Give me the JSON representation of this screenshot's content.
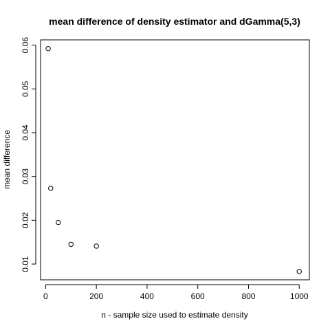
{
  "chart_data": {
    "type": "scatter",
    "title": "mean difference of density estimator and dGamma(5,3)",
    "xlabel": "n - sample size used to estimate density",
    "ylabel": "mean difference",
    "xlim": [
      -20,
      1040
    ],
    "ylim": [
      0.0064,
      0.0612
    ],
    "xticks": [
      0,
      200,
      400,
      600,
      800,
      1000
    ],
    "xtick_labels": [
      "0",
      "200",
      "400",
      "600",
      "800",
      "1000"
    ],
    "yticks": [
      0.01,
      0.02,
      0.03,
      0.04,
      0.05,
      0.06
    ],
    "ytick_labels": [
      "0.01",
      "0.02",
      "0.03",
      "0.04",
      "0.05",
      "0.06"
    ],
    "grid": false,
    "legend": "none",
    "marker": "open-circle",
    "points": [
      {
        "x": 10,
        "y": 0.0592
      },
      {
        "x": 20,
        "y": 0.0273
      },
      {
        "x": 50,
        "y": 0.0195
      },
      {
        "x": 100,
        "y": 0.0145
      },
      {
        "x": 200,
        "y": 0.0141
      },
      {
        "x": 1000,
        "y": 0.0083
      }
    ]
  }
}
